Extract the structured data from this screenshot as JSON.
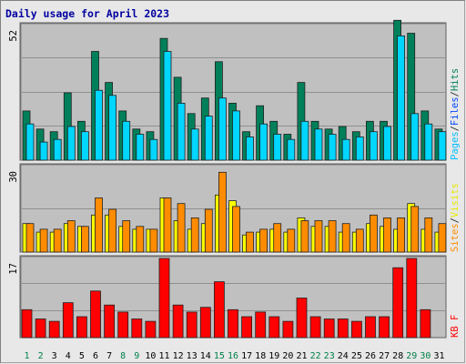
{
  "chart_data": {
    "type": "bar",
    "title": "Daily usage for April 2023",
    "categories": [
      "1",
      "2",
      "3",
      "4",
      "5",
      "6",
      "7",
      "8",
      "9",
      "10",
      "11",
      "12",
      "13",
      "14",
      "15",
      "16",
      "17",
      "18",
      "19",
      "20",
      "21",
      "22",
      "23",
      "24",
      "25",
      "26",
      "27",
      "28",
      "29",
      "30",
      "31"
    ],
    "weekend_days": [
      "1",
      "2",
      "8",
      "9",
      "15",
      "16",
      "22",
      "23",
      "29",
      "30"
    ],
    "panels": [
      {
        "name": "hits_files_pages",
        "ymax_label": "52",
        "ymax": 52,
        "legend": [
          {
            "text": "Pages",
            "color": "#00bfff"
          },
          {
            "text": "Files",
            "color": "#0044ff"
          },
          {
            "text": "Hits",
            "color": "#00805a"
          }
        ],
        "series": [
          {
            "name": "Hits",
            "color": "#00805a",
            "values": [
              19,
              12,
              11,
              26,
              15,
              42,
              30,
              19,
              12,
              11,
              47,
              32,
              18,
              24,
              38,
              22,
              11,
              21,
              15,
              10,
              30,
              15,
              12,
              13,
              11,
              15,
              15,
              54,
              49,
              19,
              12
            ]
          },
          {
            "name": "Files",
            "color": "#00d6ff",
            "values": [
              14,
              7,
              8,
              13,
              11,
              27,
              25,
              15,
              10,
              8,
              42,
              22,
              12,
              17,
              24,
              19,
              9,
              14,
              10,
              8,
              15,
              12,
              10,
              8,
              9,
              11,
              13,
              48,
              18,
              14,
              11
            ]
          }
        ]
      },
      {
        "name": "visits_sites",
        "ymax_label": "30",
        "ymax": 30,
        "legend": [
          {
            "text": "Sites",
            "color": "#ff8c00"
          },
          {
            "text": "/",
            "color": "#303030"
          },
          {
            "text": "Visits",
            "color": "#e8e800"
          }
        ],
        "series": [
          {
            "name": "Visits",
            "color": "#ffff00",
            "values": [
              10,
              7,
              7,
              10,
              9,
              13,
              13,
              9,
              8,
              8,
              19,
              11,
              8,
              10,
              20,
              18,
              6,
              7,
              8,
              7,
              12,
              9,
              9,
              7,
              7,
              10,
              9,
              8,
              17,
              8,
              7
            ]
          },
          {
            "name": "Sites",
            "color": "#ff8c00",
            "values": [
              10,
              8,
              8,
              11,
              9,
              19,
              15,
              11,
              9,
              8,
              19,
              17,
              12,
              15,
              28,
              16,
              7,
              8,
              10,
              8,
              11,
              11,
              11,
              10,
              8,
              13,
              12,
              12,
              16,
              12,
              10
            ]
          }
        ]
      },
      {
        "name": "kbytes",
        "ymax_label": "17",
        "ymax": 17,
        "legend": [
          {
            "text": "KB F",
            "color": "#ff0000"
          }
        ],
        "series": [
          {
            "name": "KB F",
            "color": "#ff0000",
            "values": [
              6,
              4,
              3.5,
              7.5,
              4.5,
              10,
              7,
              5.5,
              4,
              3.5,
              17,
              7,
              5.5,
              6.5,
              12,
              6,
              4.5,
              5.5,
              4.5,
              3.5,
              8.5,
              4.5,
              4,
              4,
              3.5,
              4.5,
              4.5,
              15,
              17,
              6,
              0
            ]
          }
        ]
      }
    ],
    "colors": {
      "background": "#e8e8e8",
      "plot_bg": "#c0c0c0",
      "grid": "#909090",
      "title": "#0000a0",
      "weekday_label": "#000000",
      "weekend_label": "#00804a",
      "ylabel": "#000000"
    }
  }
}
